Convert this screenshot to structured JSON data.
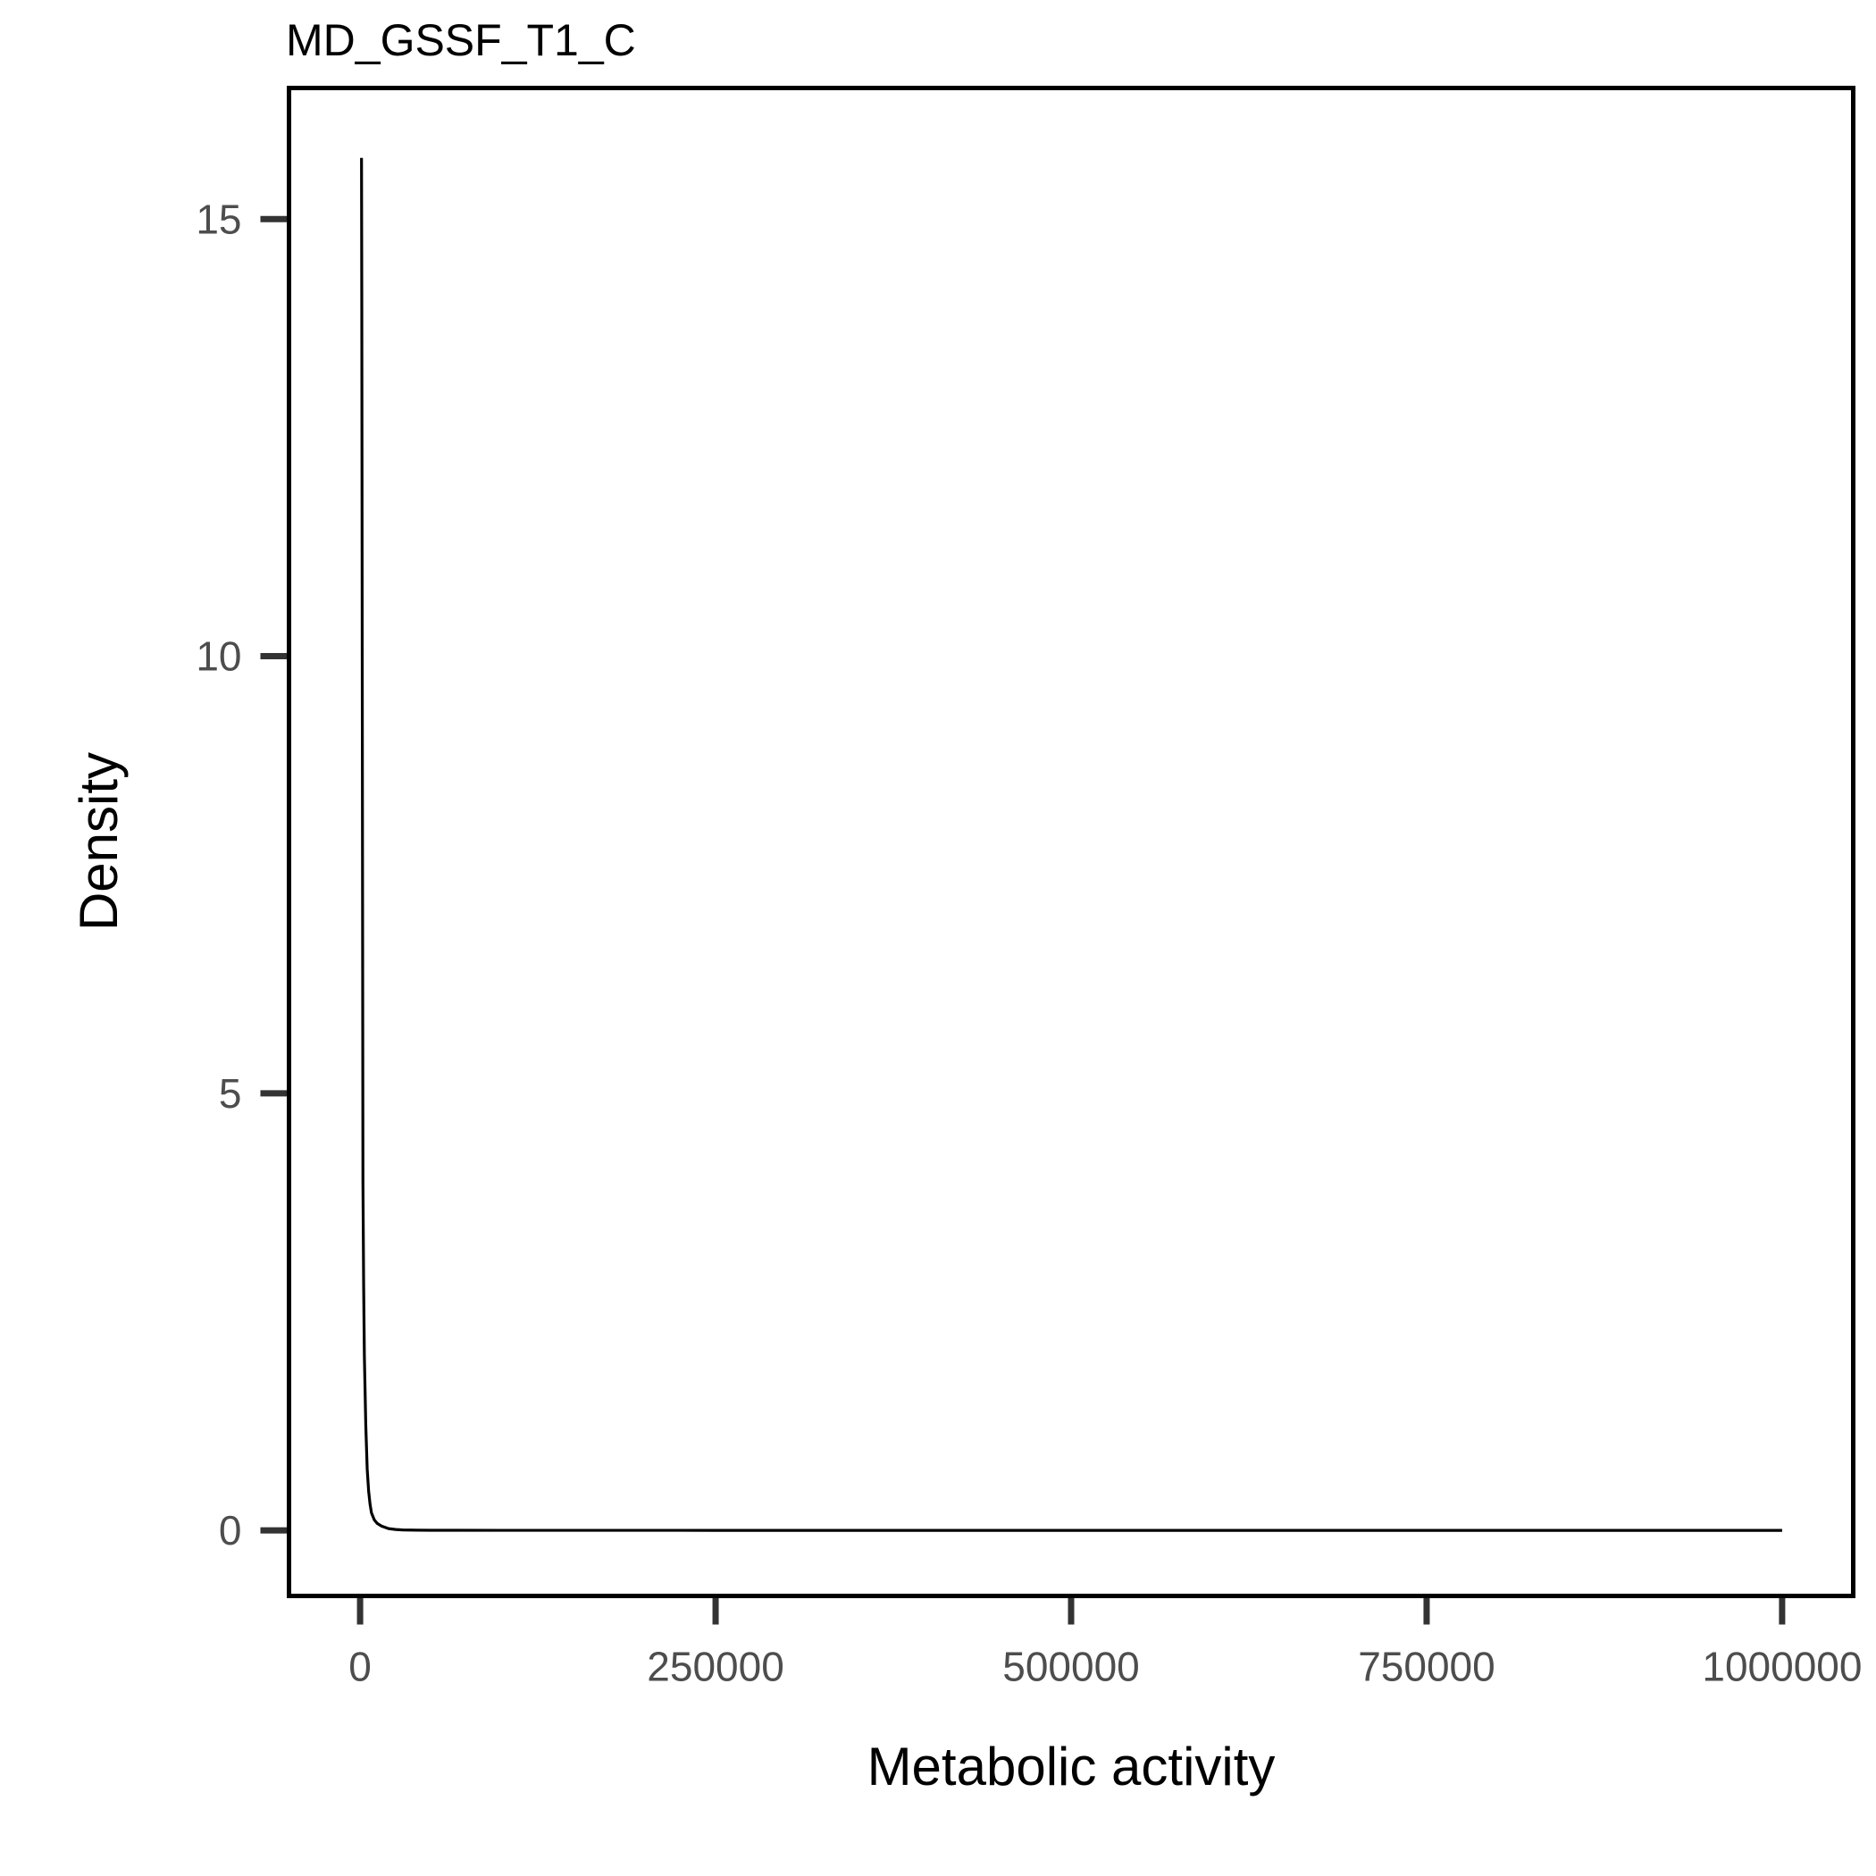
{
  "chart_data": {
    "type": "line",
    "title": "MD_GSSF_T1_C",
    "xlabel": "Metabolic activity",
    "ylabel": "Density",
    "xlim": [
      -50000,
      1050000
    ],
    "ylim": [
      -0.75,
      16.5
    ],
    "x_ticks": [
      0,
      250000,
      500000,
      750000,
      1000000
    ],
    "x_tick_labels": [
      "0",
      "250000",
      "500000",
      "750000",
      "1000000"
    ],
    "y_ticks": [
      0,
      5,
      10,
      15
    ],
    "y_tick_labels": [
      "0",
      "5",
      "10",
      "15"
    ],
    "grid": false,
    "legend": "none",
    "line_color": "#000000",
    "series": [
      {
        "x": [
          1000,
          1200,
          1500,
          1800,
          2000,
          2500,
          3000,
          4000,
          5000,
          6000,
          7000,
          8000,
          10000,
          12000,
          15000,
          20000,
          25000,
          30000,
          40000,
          50000,
          100000,
          250000,
          500000,
          750000,
          1000000
        ],
        "y": [
          15.7,
          14.0,
          10.0,
          6.5,
          4.0,
          2.8,
          2.0,
          1.2,
          0.7,
          0.45,
          0.3,
          0.2,
          0.12,
          0.08,
          0.05,
          0.02,
          0.01,
          0.005,
          0.002,
          0.001,
          0.0005,
          0.0002,
          0.0001,
          0.0001,
          0.0
        ]
      }
    ]
  }
}
